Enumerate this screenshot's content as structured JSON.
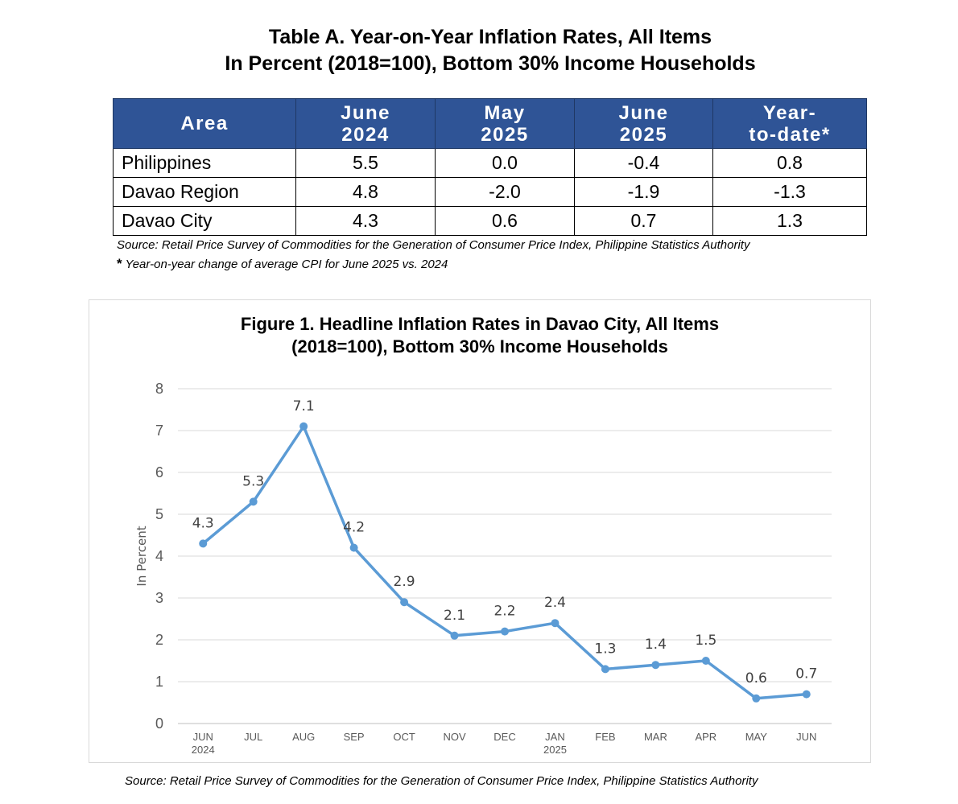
{
  "table": {
    "title_line1": "Table A. Year-on-Year Inflation Rates, All Items",
    "title_line2": "In Percent (2018=100), Bottom 30% Income Households",
    "headers": [
      "Area",
      "June\n2024",
      "May\n2025",
      "June\n2025",
      "Year-\nto-date*"
    ],
    "rows": [
      [
        "Philippines",
        "5.5",
        "0.0",
        "-0.4",
        "0.8"
      ],
      [
        "Davao Region",
        "4.8",
        "-2.0",
        "-1.9",
        "-1.3"
      ],
      [
        "Davao City",
        "4.3",
        "0.6",
        "0.7",
        "1.3"
      ]
    ],
    "source": "Source: Retail Price Survey of Commodities for the Generation of Consumer Price Index, Philippine Statistics Authority",
    "footnote_mark": "*",
    "footnote": " Year-on-year change of average CPI for June 2025 vs. 2024",
    "header_color": "#2F5496"
  },
  "chart_data": {
    "type": "line",
    "title_line1": "Figure 1. Headline Inflation Rates in Davao City, All Items",
    "title_line2": "(2018=100), Bottom 30% Income Households",
    "ylabel": "In Percent",
    "xlabel": "",
    "ylim": [
      0,
      8
    ],
    "yticks": [
      "0",
      "1",
      "2",
      "3",
      "4",
      "5",
      "6",
      "7",
      "8"
    ],
    "grid": true,
    "categories": [
      "JUN",
      "JUL",
      "AUG",
      "SEP",
      "OCT",
      "NOV",
      "DEC",
      "JAN",
      "FEB",
      "MAR",
      "APR",
      "MAY",
      "JUN"
    ],
    "category_sublabels": [
      "2024",
      "",
      "",
      "",
      "",
      "",
      "",
      "2025",
      "",
      "",
      "",
      "",
      ""
    ],
    "series": [
      {
        "values": [
          4.3,
          5.3,
          7.1,
          4.2,
          2.9,
          2.1,
          2.2,
          2.4,
          1.3,
          1.4,
          1.5,
          0.6,
          0.7
        ],
        "labels": [
          "4.3",
          "5.3",
          "7.1",
          "4.2",
          "2.9",
          "2.1",
          "2.2",
          "2.4",
          "1.3",
          "1.4",
          "1.5",
          "0.6",
          "0.7"
        ],
        "color": "#5B9BD5"
      }
    ]
  },
  "chart_source": "Source: Retail Price Survey of Commodities for the Generation of Consumer Price Index, Philippine Statistics Authority"
}
